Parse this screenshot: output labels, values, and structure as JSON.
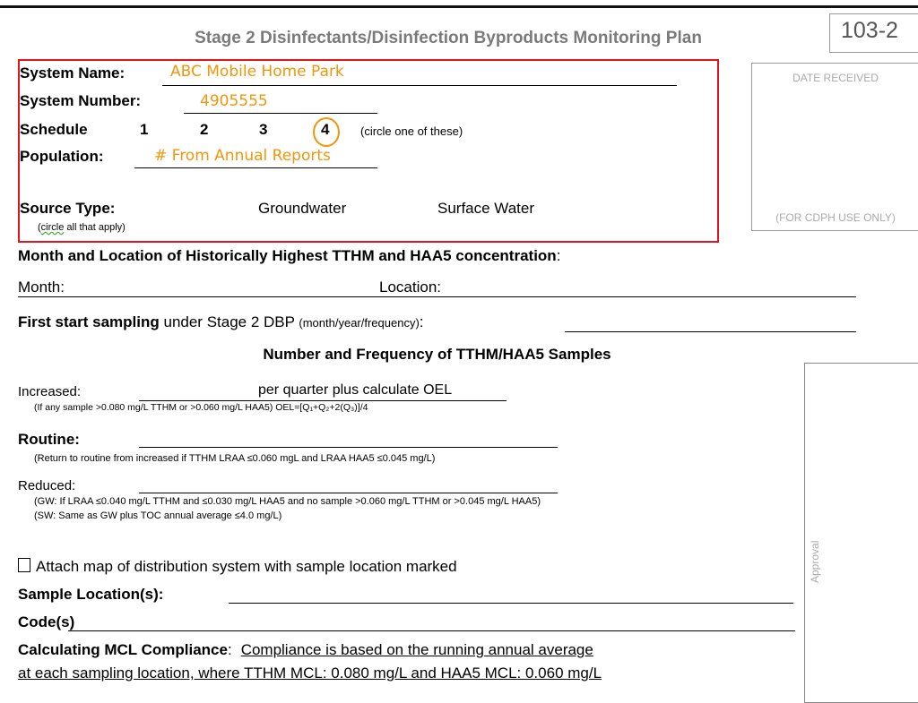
{
  "header": {
    "title": "Stage 2 Disinfectants/Disinfection Byproducts Monitoring Plan",
    "form_number": "103-2"
  },
  "date_box": {
    "top_label": "DATE RECEIVED",
    "bottom_label": "(FOR CDPH USE ONLY)"
  },
  "system": {
    "name_label": "System Name:",
    "name_value": "ABC Mobile Home Park",
    "number_label": "System Number:",
    "number_value": "4905555",
    "schedule_label": "Schedule",
    "schedule_options": [
      "1",
      "2",
      "3",
      "4"
    ],
    "schedule_selected": "4",
    "schedule_hint": "(circle one of these)",
    "population_label": "Population:",
    "population_value": "# From Annual Reports",
    "source_label": "Source Type:",
    "source_hint_word": "circle",
    "source_hint_rest": " all that apply)",
    "source_options": [
      "Groundwater",
      "Surface Water"
    ]
  },
  "historical": {
    "heading": "Month and Location of Historically Highest TTHM and HAA5 concentration",
    "heading_colon": ":",
    "month_label": "Month:",
    "location_label": "Location:"
  },
  "first_start": {
    "bold": "First start sampling",
    "normal": " under Stage 2 DBP ",
    "small": "(month/year/frequency)",
    "colon": ":"
  },
  "samples": {
    "heading": "Number and Frequency of TTHM/HAA5 Samples",
    "increased_label": "Increased:",
    "increased_text": "per quarter plus calculate OEL",
    "increased_note": "(If any sample >0.080 mg/L TTHM or >0.060 mg/L HAA5) OEL=[Q₁+Q₂+2(Q₃)]/4",
    "routine_label": "Routine:",
    "routine_note": "(Return to routine from increased if TTHM LRAA ≤0.060 mgL and LRAA HAA5 ≤0.045 mg/L)",
    "reduced_label": "Reduced:",
    "reduced_note_gw": "(GW: If LRAA ≤0.040 mg/L TTHM and ≤0.030 mg/L HAA5 and no sample >0.060 mg/L TTHM or >0.045 mg/L HAA5)",
    "reduced_note_sw": "(SW: Same as GW plus TOC annual average ≤4.0 mg/L)"
  },
  "attach_map": {
    "label": "Attach map of distribution system with sample location marked",
    "checked": false
  },
  "sample_location_label": "Sample Location(s):",
  "codes_label": "Code(s)",
  "mcl": {
    "label": "Calculating MCL Compliance",
    "colon": ":",
    "text_line1": "Compliance is based on the running annual average",
    "text_line2": "at each sampling location, where TTHM MCL: 0.080 mg/L and HAA5 MCL: 0.060 mg/L"
  },
  "approval_label": "Approval",
  "colors": {
    "highlight_box": "#e0141e",
    "filled_text": "#f0960a",
    "title": "#7a7a7a"
  }
}
